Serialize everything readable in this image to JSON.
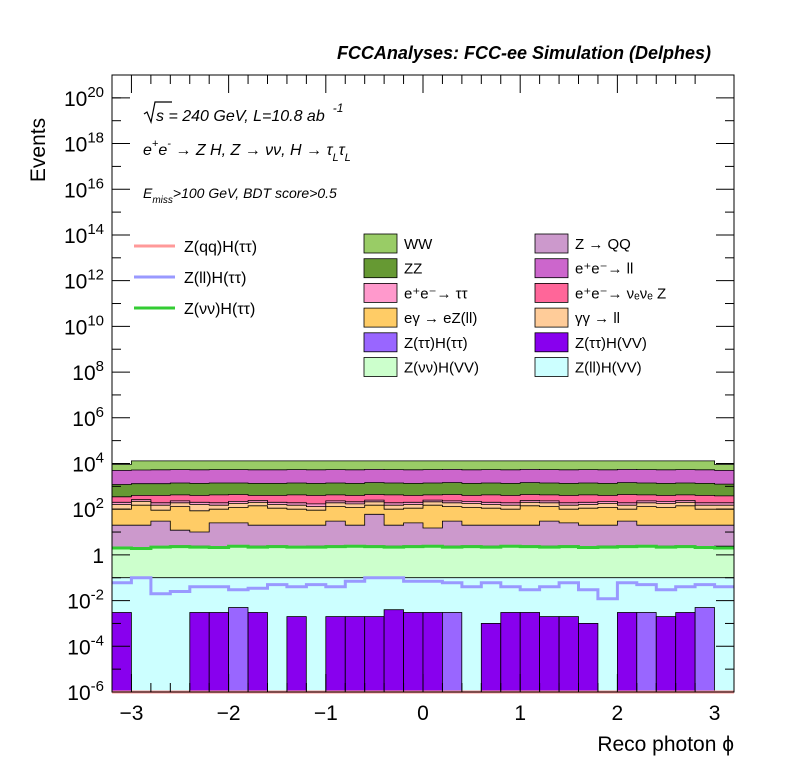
{
  "chart_data": {
    "type": "area",
    "title": "FCCAnalyses: FCC-ee Simulation (Delphes)",
    "xlabel": "Reco photon ϕ",
    "ylabel": "Events",
    "log_y": true,
    "xlim": [
      -3.2,
      3.2
    ],
    "ylim": [
      1e-06,
      1e+21
    ],
    "x_ticks": [
      "−3",
      "−2",
      "−1",
      "0",
      "1",
      "2",
      "3"
    ],
    "y_ticks": [
      {
        "base": "10",
        "exp": "20"
      },
      {
        "base": "10",
        "exp": "18"
      },
      {
        "base": "10",
        "exp": "16"
      },
      {
        "base": "10",
        "exp": "14"
      },
      {
        "base": "10",
        "exp": "12"
      },
      {
        "base": "10",
        "exp": "10"
      },
      {
        "base": "10",
        "exp": "8"
      },
      {
        "base": "10",
        "exp": "6"
      },
      {
        "base": "10",
        "exp": "4"
      },
      {
        "base": "10",
        "exp": "2"
      },
      {
        "base": "1",
        "exp": ""
      },
      {
        "base": "10",
        "exp": "-2"
      },
      {
        "base": "10",
        "exp": "-4"
      },
      {
        "base": "10",
        "exp": "-6"
      }
    ],
    "annotations": {
      "line1_sqrt": "s",
      "line1_rest": " = 240 GeV, L=10.8 ab",
      "line1_sup": "-1",
      "line2_a": "e",
      "line2_a_sup": "+",
      "line2_b": "e",
      "line2_b_sup": "-",
      "line2_c": " → Z H, Z  → νν, H  → τ",
      "line2_sub1": "L",
      "line2_d": "τ",
      "line2_sub2": "L",
      "line3_a": "E",
      "line3_sub": "miss",
      "line3_b": ">100 GeV, BDT score>0.5"
    },
    "bins": 32,
    "stack_order_bottom_to_top": [
      "Z(ll)H(VV)",
      "Z(ττ)H(VV)",
      "Z(ττ)H(ττ)",
      "Z(νν)H(VV)",
      "Z → QQ",
      "eγ → eZ(ll)",
      "γγ → ll",
      "e⁺e⁻→ ττ",
      "e⁺e⁻→ νₑνₑ Z",
      "ZZ",
      "e⁺e⁻→ ll",
      "WW"
    ],
    "stack_cumulative": [
      {
        "name": "Z(ll)H(VV)",
        "color": "#ccffff",
        "values": [
          0.1,
          0.1,
          0.1,
          0.1,
          0.1,
          0.1,
          0.1,
          0.1,
          0.1,
          0.1,
          0.1,
          0.1,
          0.1,
          0.1,
          0.1,
          0.1,
          0.1,
          0.1,
          0.1,
          0.1,
          0.1,
          0.1,
          0.1,
          0.1,
          0.1,
          0.1,
          0.1,
          0.1,
          0.1,
          0.1,
          0.1,
          0.1
        ]
      },
      {
        "name": "Z(ττ)H(VV)",
        "color": "#8800ee",
        "values": [
          0.003,
          0.1,
          0.1,
          0.1,
          0.1,
          0.1,
          0.1,
          0.1,
          0.1,
          0.1,
          0.1,
          0.1,
          0.1,
          0.1,
          0.1,
          0.1,
          0.1,
          0.1,
          0.1,
          0.1,
          0.1,
          0.1,
          0.1,
          0.1,
          0.1,
          0.1,
          0.1,
          0.1,
          0.1,
          0.1,
          0.1,
          0.1
        ]
      },
      {
        "name": "Z(ττ)H(ττ)",
        "color": "#9966ff",
        "values": [
          0.1,
          0.1,
          0.1,
          0.1,
          0.1,
          0.1,
          0.1,
          0.1,
          0.1,
          0.1,
          0.1,
          0.1,
          0.1,
          0.1,
          0.1,
          0.1,
          0.1,
          0.1,
          0.1,
          0.1,
          0.1,
          0.1,
          0.1,
          0.1,
          0.1,
          0.1,
          0.1,
          0.1,
          0.1,
          0.1,
          0.1,
          0.1
        ]
      },
      {
        "name": "Z(νν)H(VV)",
        "color": "#ccffcc",
        "values": [
          2.2,
          2.1,
          2.3,
          2.5,
          2.4,
          2.3,
          2.6,
          2.4,
          2.5,
          2.3,
          2.4,
          2.5,
          2.6,
          2.5,
          2.4,
          2.5,
          2.6,
          2.4,
          2.5,
          2.4,
          2.6,
          2.5,
          2.4,
          2.5,
          2.3,
          2.4,
          2.5,
          2.6,
          2.4,
          2.5,
          2.3,
          2.4
        ]
      },
      {
        "name": "Z → QQ",
        "color": "#cc99cc",
        "values": [
          20,
          20,
          30,
          12,
          10,
          25,
          25,
          20,
          20,
          20,
          20,
          30,
          20,
          60,
          20,
          25,
          15,
          30,
          20,
          20,
          20,
          20,
          30,
          25,
          20,
          20,
          30,
          20,
          20,
          20,
          20,
          20
        ]
      },
      {
        "name": "eγ → eZ(ll)",
        "color": "#ffcc66",
        "values": [
          100,
          150,
          90,
          130,
          85,
          100,
          120,
          140,
          110,
          100,
          90,
          130,
          120,
          150,
          100,
          110,
          150,
          130,
          120,
          110,
          100,
          140,
          130,
          100,
          110,
          120,
          100,
          130,
          120,
          140,
          100,
          100
        ]
      },
      {
        "name": "γγ → ll",
        "color": "#ffcc99",
        "values": [
          160,
          220,
          150,
          190,
          160,
          150,
          180,
          200,
          160,
          150,
          130,
          190,
          170,
          210,
          150,
          160,
          210,
          190,
          180,
          160,
          150,
          200,
          190,
          150,
          160,
          180,
          150,
          190,
          180,
          200,
          150,
          150
        ]
      },
      {
        "name": "e⁺e⁻→ ττ",
        "color": "#ff99cc",
        "values": [
          200,
          260,
          190,
          230,
          200,
          190,
          220,
          240,
          200,
          190,
          170,
          230,
          210,
          250,
          190,
          200,
          250,
          230,
          220,
          200,
          190,
          240,
          230,
          190,
          200,
          220,
          190,
          230,
          220,
          240,
          190,
          190
        ]
      },
      {
        "name": "e⁺e⁻→ νₑνₑ Z",
        "color": "#ff6699",
        "values": [
          350,
          400,
          400,
          420,
          400,
          420,
          440,
          400,
          400,
          420,
          400,
          420,
          400,
          440,
          420,
          400,
          420,
          440,
          400,
          420,
          400,
          440,
          420,
          400,
          420,
          400,
          440,
          420,
          400,
          420,
          400,
          380
        ]
      },
      {
        "name": "ZZ",
        "color": "#669933",
        "values": [
          1200,
          1300,
          1300,
          1400,
          1350,
          1400,
          1400,
          1350,
          1350,
          1400,
          1350,
          1400,
          1350,
          1450,
          1400,
          1350,
          1400,
          1450,
          1350,
          1400,
          1350,
          1450,
          1400,
          1350,
          1400,
          1350,
          1450,
          1400,
          1350,
          1400,
          1350,
          1250
        ]
      },
      {
        "name": "e⁺e⁻→ ll",
        "color": "#cc66cc",
        "values": [
          5000,
          5200,
          5300,
          5400,
          5300,
          5400,
          5400,
          5300,
          5300,
          5400,
          5300,
          5400,
          5300,
          5500,
          5400,
          5300,
          5400,
          5500,
          5300,
          5400,
          5300,
          5500,
          5400,
          5300,
          5400,
          5300,
          5500,
          5400,
          5300,
          5400,
          5300,
          5000
        ]
      },
      {
        "name": "WW",
        "color": "#99cc66",
        "values": [
          9000,
          13000,
          13000,
          13000,
          13000,
          13000,
          13000,
          13000,
          13000,
          13000,
          13000,
          13000,
          13000,
          13000,
          13000,
          13000,
          13000,
          13000,
          13000,
          13000,
          13000,
          13000,
          13000,
          13000,
          13000,
          13000,
          13000,
          13000,
          13000,
          13000,
          13000,
          9000
        ]
      }
    ],
    "tt_vv_raw": [
      0.003,
      1e-06,
      1e-06,
      1e-06,
      0.003,
      0.003,
      0.003,
      0.003,
      1e-06,
      0.002,
      1e-06,
      0.002,
      0.002,
      0.002,
      0.004,
      0.003,
      0.003,
      1e-06,
      1e-06,
      0.001,
      0.003,
      0.003,
      0.002,
      0.002,
      0.001,
      1e-06,
      0.003,
      0.002,
      0.002,
      0.003,
      1e-06,
      1e-06
    ],
    "tt_tt_raw": [
      1e-06,
      1e-06,
      1e-06,
      1e-06,
      1e-06,
      1e-06,
      0.005,
      1e-06,
      1e-06,
      1e-06,
      1e-06,
      1e-06,
      1e-06,
      1e-06,
      1e-06,
      1e-06,
      1e-06,
      0.003,
      1e-06,
      1e-06,
      1e-06,
      1e-06,
      1e-06,
      1e-06,
      1e-06,
      1e-06,
      1e-06,
      0.003,
      1e-06,
      1e-06,
      0.005,
      1e-06
    ],
    "ll_vv_raw": [
      0.1,
      0.1,
      0.1,
      0.1,
      0.1,
      0.1,
      0.1,
      0.1,
      0.1,
      0.1,
      0.1,
      0.1,
      0.1,
      0.1,
      0.1,
      0.1,
      0.1,
      0.1,
      0.1,
      0.1,
      0.1,
      0.1,
      0.1,
      0.1,
      0.1,
      0.1,
      0.1,
      0.1,
      0.1,
      0.1,
      0.1,
      0.1
    ],
    "signal_lines": [
      {
        "name": "Z(qq)H(ττ)",
        "color": "#ff9999",
        "values": [
          1e-06,
          1e-06,
          1e-06,
          1e-06,
          1e-06,
          1e-06,
          1e-06,
          1e-06,
          1e-06,
          1e-06,
          1e-06,
          1e-06,
          1e-06,
          1e-06,
          1e-06,
          1e-06,
          1e-06,
          1e-06,
          1e-06,
          1e-06,
          1e-06,
          1e-06,
          1e-06,
          1e-06,
          1e-06,
          1e-06,
          1e-06,
          1e-06,
          1e-06,
          1e-06,
          1e-06,
          1e-06
        ]
      },
      {
        "name": "Z(ll)H(ττ)",
        "color": "#9999ff",
        "values": [
          0.06,
          0.1,
          0.02,
          0.025,
          0.04,
          0.04,
          0.03,
          0.035,
          0.05,
          0.04,
          0.05,
          0.04,
          0.07,
          0.1,
          0.1,
          0.07,
          0.07,
          0.06,
          0.04,
          0.06,
          0.04,
          0.03,
          0.04,
          0.06,
          0.03,
          0.012,
          0.06,
          0.05,
          0.03,
          0.04,
          0.05,
          0.04
        ]
      },
      {
        "name": "Z(νν)H(ττ)",
        "color": "#33cc33",
        "values": [
          2.0,
          1.9,
          2.2,
          2.3,
          2.2,
          2.1,
          2.4,
          2.2,
          2.3,
          2.2,
          2.2,
          2.3,
          2.4,
          2.3,
          2.2,
          2.3,
          2.4,
          2.2,
          2.3,
          2.2,
          2.4,
          2.3,
          2.2,
          2.3,
          2.1,
          2.2,
          2.3,
          2.4,
          2.2,
          2.3,
          2.1,
          2.0
        ]
      }
    ],
    "legend_left": [
      {
        "label": "Z(qq)H(ττ)",
        "color": "#ff9999"
      },
      {
        "label": "Z(ll)H(ττ)",
        "color": "#9999ff"
      },
      {
        "label": "Z(νν)H(ττ)",
        "color": "#33cc33"
      }
    ],
    "legend_mid": [
      {
        "label": "WW",
        "color": "#99cc66"
      },
      {
        "label": "ZZ",
        "color": "#669933"
      },
      {
        "label": "e⁺e⁻→ ττ",
        "color": "#ff99cc"
      },
      {
        "label": "eγ → eZ(ll)",
        "color": "#ffcc66"
      },
      {
        "label": "Z(ττ)H(ττ)",
        "color": "#9966ff"
      },
      {
        "label": "Z(νν)H(VV)",
        "color": "#ccffcc"
      }
    ],
    "legend_right": [
      {
        "label": "Z → QQ",
        "color": "#cc99cc"
      },
      {
        "label": "e⁺e⁻→ ll",
        "color": "#cc66cc"
      },
      {
        "label": "e⁺e⁻→ νₑνₑ Z",
        "color": "#ff6699"
      },
      {
        "label": "γγ → ll",
        "color": "#ffcc99"
      },
      {
        "label": "Z(ττ)H(VV)",
        "color": "#8800ee"
      },
      {
        "label": "Z(ll)H(VV)",
        "color": "#ccffff"
      }
    ]
  }
}
